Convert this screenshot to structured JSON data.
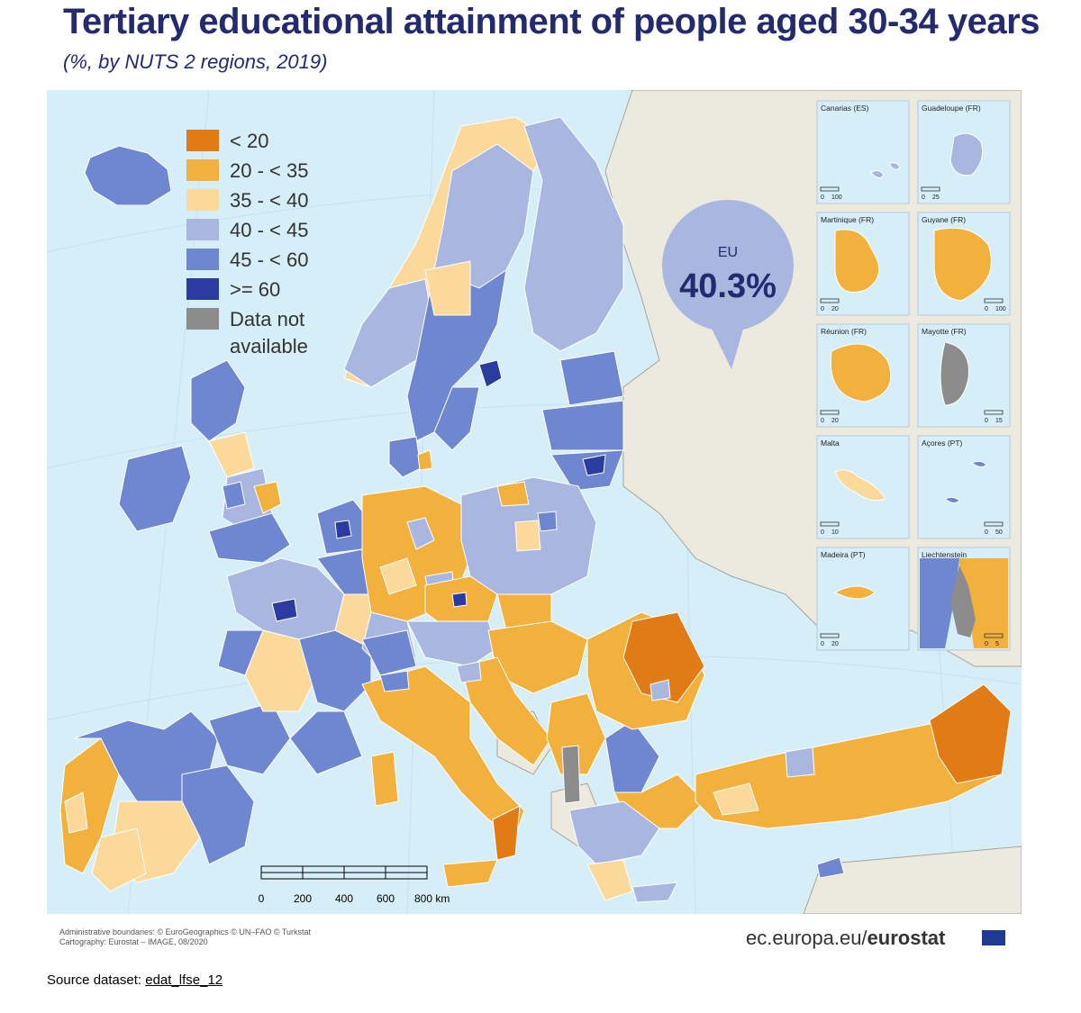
{
  "title": "Tertiary educational attainment of people aged 30-34 years",
  "subtitle": "(%, by NUTS 2 regions, 2019)",
  "legend": [
    {
      "label": "< 20",
      "color": "#e07b15"
    },
    {
      "label": "20 - < 35",
      "color": "#f2b03c"
    },
    {
      "label": "35 - < 40",
      "color": "#fbd99a"
    },
    {
      "label": "40 - < 45",
      "color": "#a8b6e0"
    },
    {
      "label": "45 - < 60",
      "color": "#6f86d0"
    },
    {
      "label": ">= 60",
      "color": "#2b3ca0"
    },
    {
      "label": "Data not available",
      "label_line1": "Data not",
      "label_line2": "available",
      "color": "#8c8c8c"
    }
  ],
  "eu_badge": {
    "label": "EU",
    "value": "40.3%"
  },
  "insets": [
    {
      "name": "Canarias (ES)",
      "scale": [
        "0",
        "100"
      ]
    },
    {
      "name": "Guadeloupe (FR)",
      "scale": [
        "0",
        "25"
      ]
    },
    {
      "name": "Martinique (FR)",
      "scale": [
        "0",
        "20"
      ]
    },
    {
      "name": "Guyane (FR)",
      "scale": [
        "0",
        "100"
      ]
    },
    {
      "name": "Réunion (FR)",
      "scale": [
        "0",
        "20"
      ]
    },
    {
      "name": "Mayotte (FR)",
      "scale": [
        "0",
        "15"
      ]
    },
    {
      "name": "Malta",
      "scale": [
        "0",
        "10"
      ]
    },
    {
      "name": "Açores (PT)",
      "scale": [
        "0",
        "50"
      ]
    },
    {
      "name": "Madeira (PT)",
      "scale": [
        "0",
        "20"
      ]
    },
    {
      "name": "Liechtenstein",
      "scale": [
        "0",
        "5"
      ]
    }
  ],
  "scalebar": {
    "ticks": [
      "0",
      "200",
      "400",
      "600",
      "800 km"
    ]
  },
  "credits": {
    "line1": "Administrative boundaries: © EuroGeographics © UN–FAO © Turkstat",
    "line2": "Cartography: Eurostat – IMAGE, 08/2020"
  },
  "brand": {
    "prefix": "ec.europa.eu/",
    "name": "eurostat"
  },
  "source": {
    "label": "Source dataset: ",
    "dataset": "edat_lfse_12"
  },
  "colors": {
    "sea": "#d6eef8",
    "non_eu_land": "#ece9df",
    "title": "#232a6e",
    "badge": "#a8b6e0"
  }
}
